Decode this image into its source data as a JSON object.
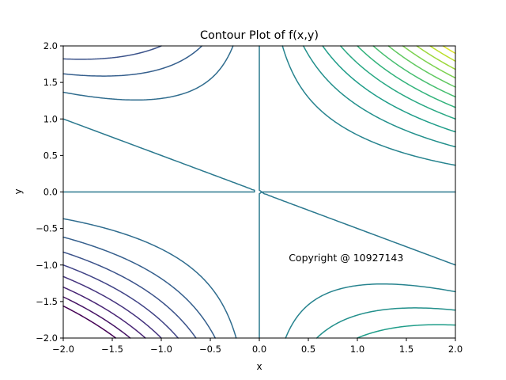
{
  "chart_data": {
    "type": "contour",
    "title": "Contour Plot of f(x,y)",
    "xlabel": "x",
    "ylabel": "y",
    "xlim": [
      -2.0,
      2.0
    ],
    "ylim": [
      -2.0,
      2.0
    ],
    "x_ticks": [
      -2.0,
      -1.5,
      -1.0,
      -0.5,
      0.0,
      0.5,
      1.0,
      1.5,
      2.0
    ],
    "y_ticks": [
      -2.0,
      -1.5,
      -1.0,
      -0.5,
      0.0,
      0.5,
      1.0,
      1.5,
      2.0
    ],
    "x_tick_labels": [
      "−2.0",
      "−1.5",
      "−1.0",
      "−0.5",
      "0.0",
      "0.5",
      "1.0",
      "1.5",
      "2.0"
    ],
    "y_tick_labels": [
      "−2.0",
      "−1.5",
      "−1.0",
      "−0.5",
      "0.0",
      "0.5",
      "1.0",
      "1.5",
      "2.0"
    ],
    "function": "x*y*(x+2*y)",
    "levels": [
      -16,
      -14,
      -12,
      -10,
      -8,
      -6,
      -4,
      -2,
      0,
      2,
      4,
      6,
      8,
      10,
      12,
      14,
      16,
      18,
      20,
      22,
      24
    ],
    "colormap": "viridis",
    "grid": false,
    "annotation": {
      "text": "Copyright @ 10927143",
      "x": 0.3,
      "y": -0.95
    }
  }
}
